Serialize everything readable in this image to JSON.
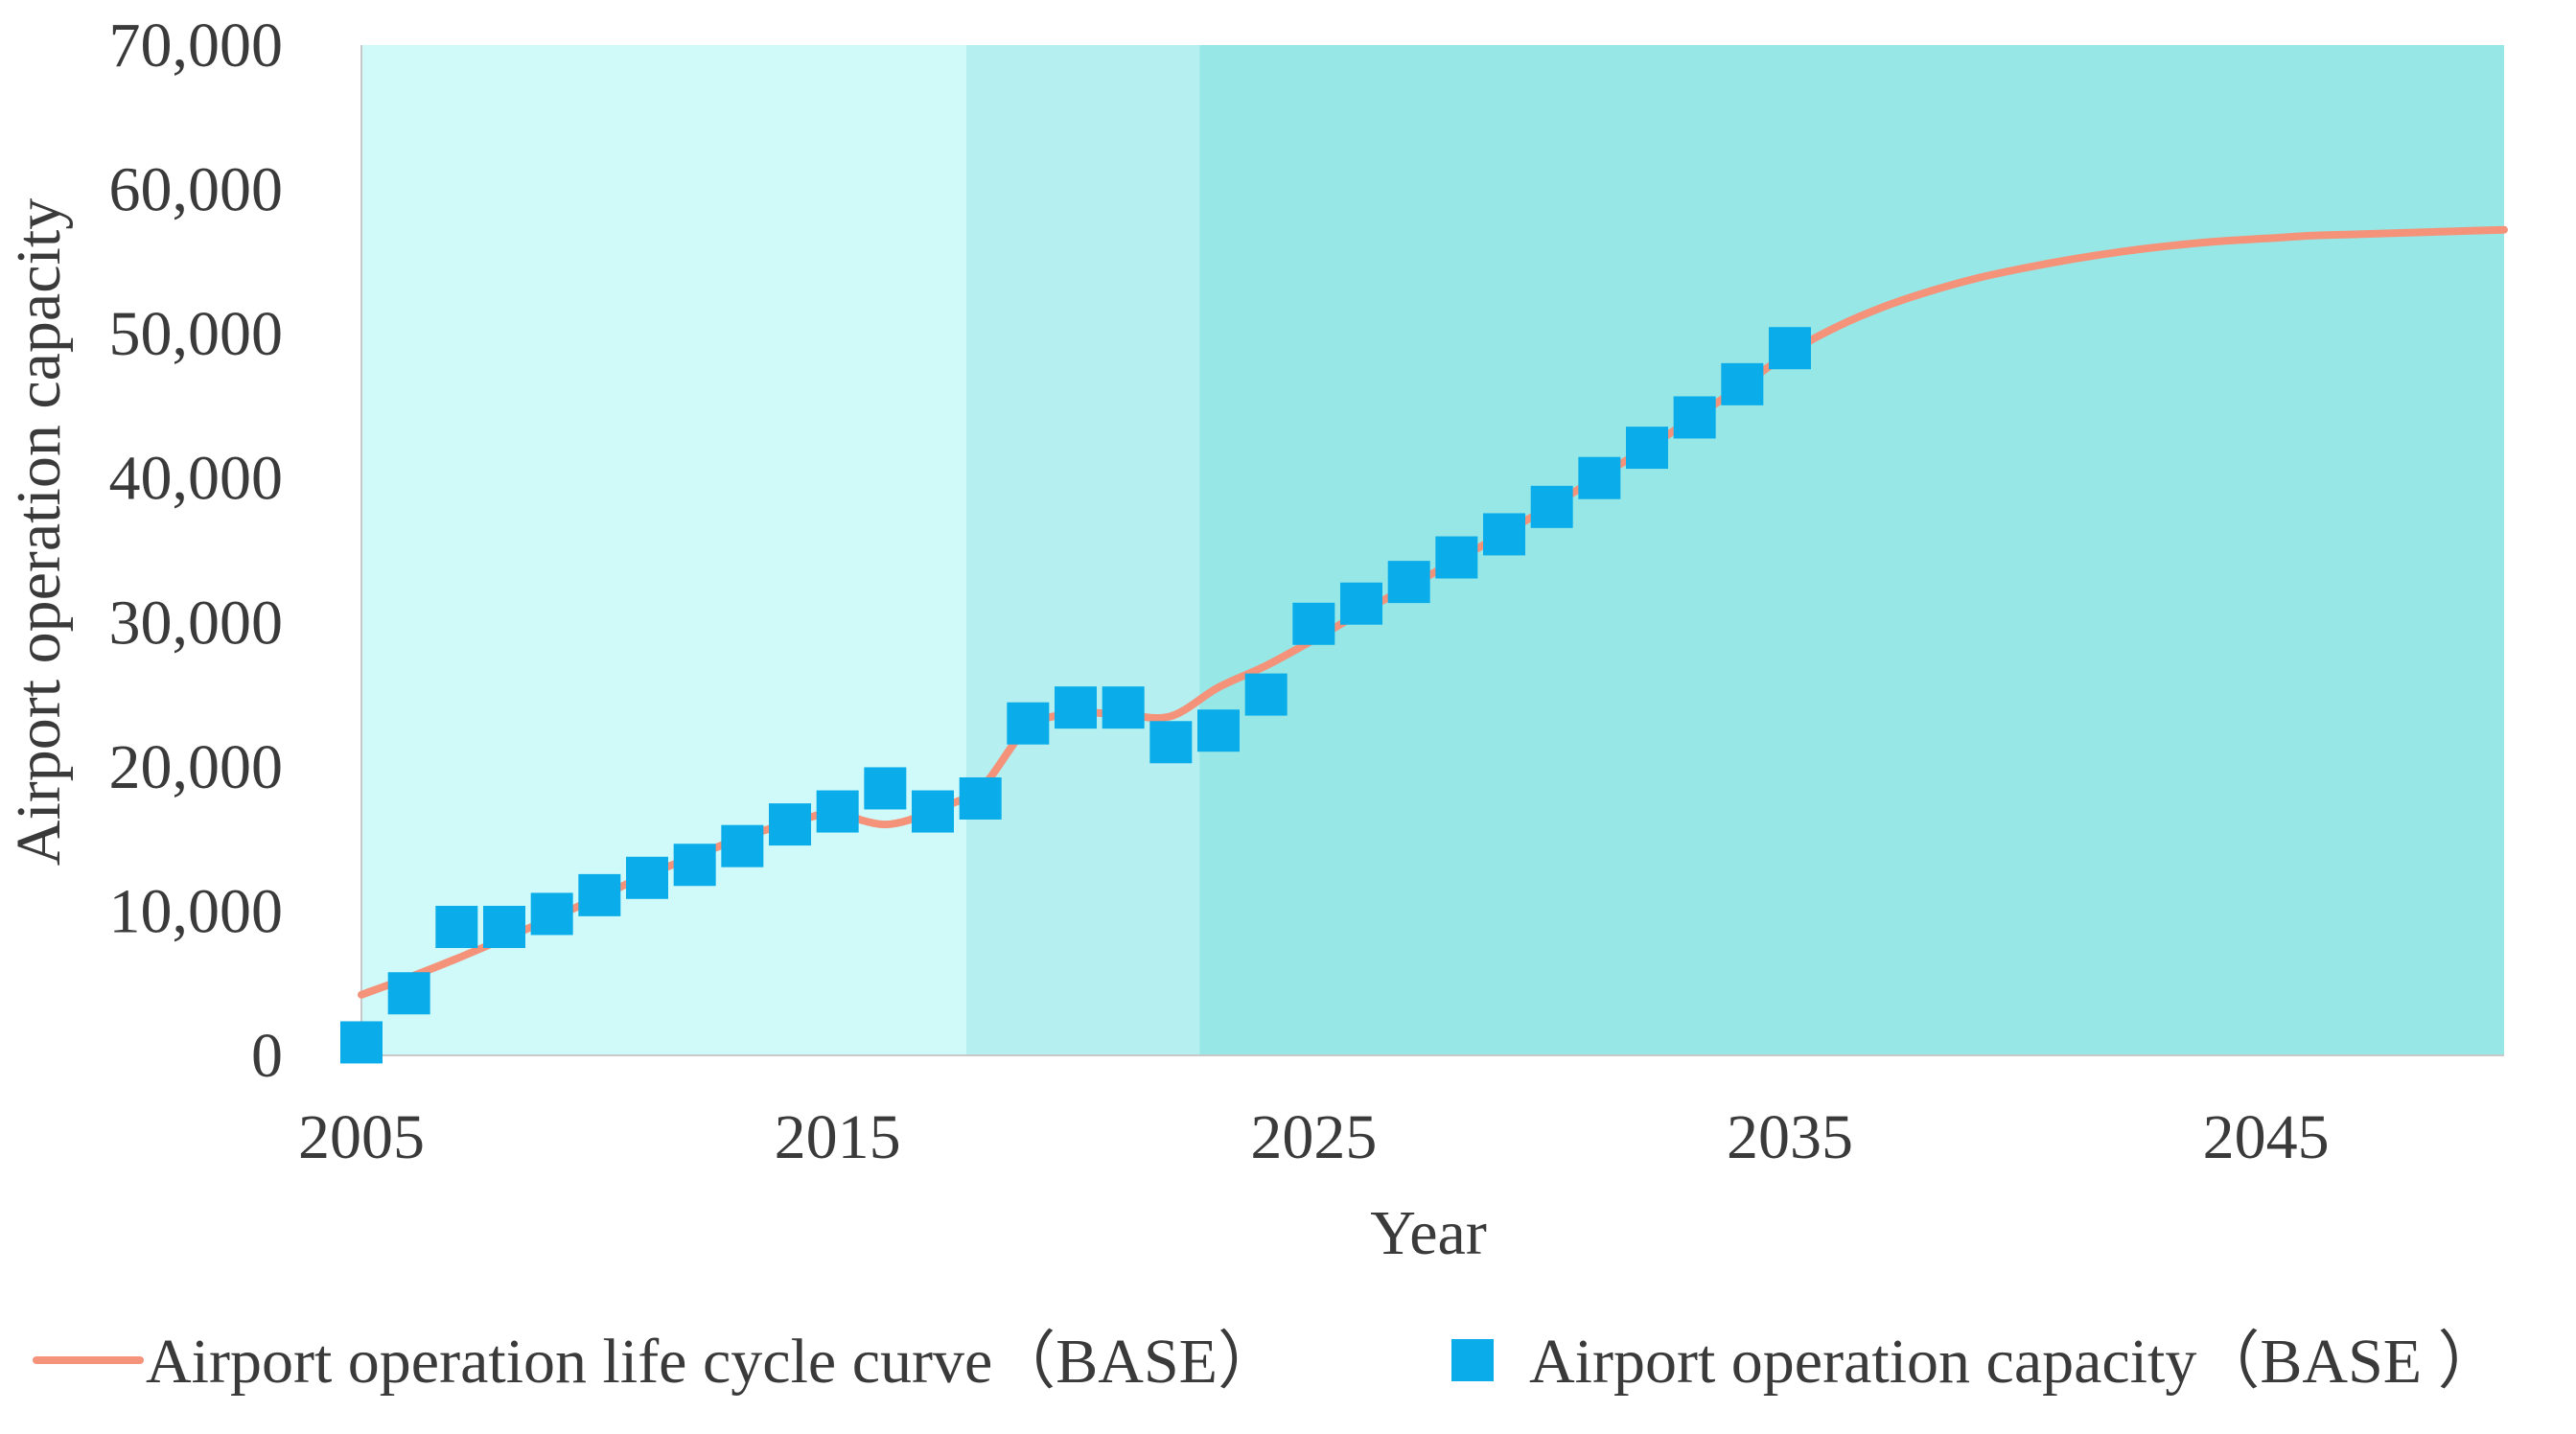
{
  "chart_data": {
    "type": "line",
    "title": "",
    "xlabel": "Year",
    "ylabel": "Airport operation capacity",
    "xlim": [
      2005,
      2050
    ],
    "ylim": [
      0,
      70000
    ],
    "x_ticks": [
      2005,
      2015,
      2025,
      2035,
      2045
    ],
    "x_tick_labels": [
      "2005",
      "2015",
      "2025",
      "2035",
      "2045"
    ],
    "y_ticks": [
      0,
      10000,
      20000,
      30000,
      40000,
      50000,
      60000,
      70000
    ],
    "y_tick_labels": [
      "0",
      "10,000",
      "20,000",
      "30,000",
      "40,000",
      "50,000",
      "60,000",
      "70,000"
    ],
    "grid": false,
    "legend_position": "bottom",
    "background_bands": [
      {
        "from": 2005,
        "to": 2017.7,
        "color": "#d0fafa"
      },
      {
        "from": 2017.7,
        "to": 2022.6,
        "color": "#b5eff0"
      },
      {
        "from": 2022.6,
        "to": 2050,
        "color": "#98e7e7"
      }
    ],
    "series": [
      {
        "name": "Airport operation life cycle curve（BASE）",
        "kind": "line",
        "color": "#f4937a",
        "x": [
          2005,
          2006,
          2007,
          2008,
          2009,
          2010,
          2011,
          2012,
          2013,
          2014,
          2015,
          2015.5,
          2016,
          2016.5,
          2017,
          2018,
          2019,
          2020,
          2021,
          2022,
          2023,
          2024,
          2025,
          2026,
          2027,
          2028,
          2029,
          2030,
          2031,
          2032,
          2033,
          2034,
          2035,
          2036,
          2037,
          2038,
          2039,
          2040,
          2041,
          2042,
          2043,
          2044,
          2045,
          2046,
          2047,
          2048,
          2049,
          2050
        ],
        "y": [
          4200,
          5400,
          6700,
          8100,
          9500,
          11000,
          12500,
          13800,
          15100,
          16100,
          16900,
          16300,
          16000,
          16300,
          17000,
          18500,
          22700,
          23700,
          23600,
          23500,
          25500,
          27000,
          28800,
          30700,
          32500,
          34300,
          36200,
          38100,
          40100,
          42100,
          44200,
          46400,
          48700,
          50500,
          51900,
          53000,
          53900,
          54600,
          55200,
          55700,
          56100,
          56400,
          56600,
          56800,
          56900,
          57000,
          57100,
          57200
        ]
      },
      {
        "name": "Airport operation capacity（BASE ）",
        "kind": "scatter",
        "marker": "square",
        "color": "#0aadea",
        "x": [
          2005,
          2006,
          2007,
          2008,
          2009,
          2010,
          2011,
          2012,
          2013,
          2014,
          2015,
          2016,
          2017,
          2018,
          2019,
          2020,
          2021,
          2022,
          2023,
          2024,
          2025,
          2026,
          2027,
          2028,
          2029,
          2030,
          2031,
          2032,
          2033,
          2034,
          2035
        ],
        "y": [
          900,
          4300,
          8900,
          8900,
          9800,
          11100,
          12300,
          13200,
          14500,
          16000,
          16900,
          18500,
          16900,
          17800,
          23000,
          24100,
          24100,
          21700,
          22500,
          25000,
          29900,
          31300,
          32800,
          34500,
          36100,
          38000,
          40000,
          42100,
          44200,
          46500,
          49000
        ]
      }
    ]
  }
}
